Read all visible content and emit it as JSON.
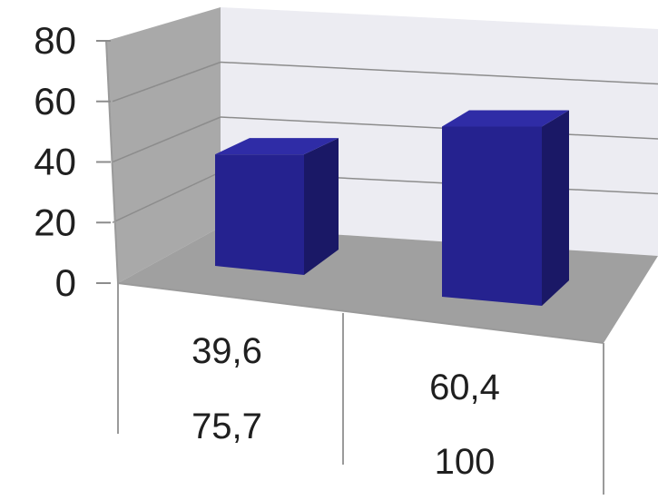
{
  "chart_data": {
    "type": "bar",
    "style": "3d-column",
    "categories": [
      "39,6\n75,7",
      "60,4\n100"
    ],
    "category_lines": [
      [
        "39,6",
        "75,7"
      ],
      [
        "60,4",
        "100"
      ]
    ],
    "values": [
      39.6,
      60.4
    ],
    "ylim": [
      0,
      80
    ],
    "yticks": [
      "0",
      "20",
      "40",
      "60",
      "80"
    ],
    "grid": true,
    "legend": "none",
    "colors": {
      "bar_front": "#25228f",
      "bar_side": "#1a1866",
      "bar_top": "#2f2ca6",
      "back_wall": "#ececf2",
      "side_wall": "#a9a9a9",
      "floor": "#a0a0a0",
      "gridline": "#8c8c8c"
    }
  }
}
